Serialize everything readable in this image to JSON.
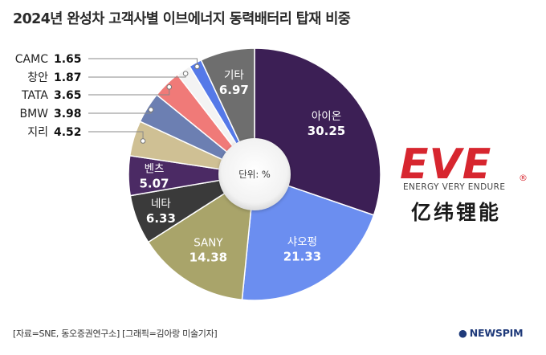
{
  "title": "2024년 완성차 고객사별 이브에너지 동력배터리 탑재 비중",
  "footer": "[자료=SNE, 동오증권연구소] [그래픽=김아랑 미술기자]",
  "brand": "NEWSPIM",
  "logo": {
    "letters": "EVE",
    "registered": "®",
    "tagline": "ENERGY VERY ENDURE",
    "chinese": "亿纬锂能",
    "color": "#d7262f"
  },
  "chart_data": {
    "type": "pie",
    "style": "donut",
    "center_label": "단위: %",
    "slices": [
      {
        "label": "아이온",
        "value": 30.25,
        "color": "#3c1f55",
        "label_pos": "inside"
      },
      {
        "label": "샤오펑",
        "value": 21.33,
        "color": "#6b8ef0",
        "label_pos": "inside"
      },
      {
        "label": "SANY",
        "value": 14.38,
        "color": "#a9a46a",
        "label_pos": "inside"
      },
      {
        "label": "네타",
        "value": 6.33,
        "color": "#3a3a3a",
        "label_pos": "inside"
      },
      {
        "label": "벤츠",
        "value": 5.07,
        "color": "#4b2a64",
        "label_pos": "inside"
      },
      {
        "label": "지리",
        "value": 4.52,
        "color": "#cfc094",
        "label_pos": "outside"
      },
      {
        "label": "BMW",
        "value": 3.98,
        "color": "#6c7fb2",
        "label_pos": "outside"
      },
      {
        "label": "TATA",
        "value": 3.65,
        "color": "#f07a78",
        "label_pos": "outside"
      },
      {
        "label": "창안",
        "value": 1.87,
        "color": "#f3f3f3",
        "label_pos": "outside"
      },
      {
        "label": "CAMC",
        "value": 1.65,
        "color": "#5579e8",
        "label_pos": "outside"
      },
      {
        "label": "기타",
        "value": 6.97,
        "color": "#6e6e6e",
        "label_pos": "inside"
      }
    ]
  }
}
